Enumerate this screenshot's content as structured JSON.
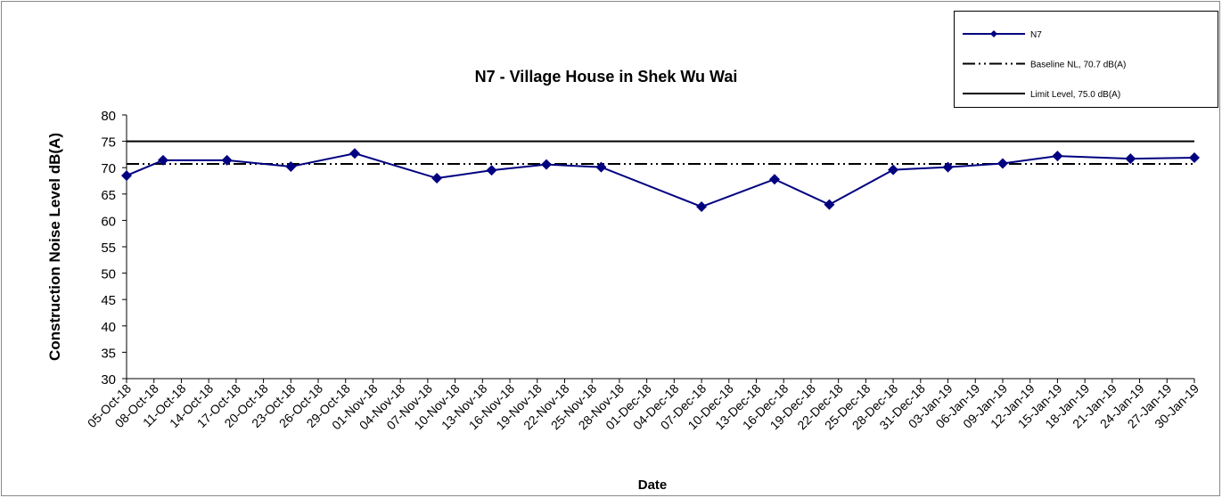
{
  "chart_data": {
    "type": "line",
    "title": "N7 - Village House in Shek Wu Wai",
    "x_label": "Date",
    "y_label": "Construction Noise Level  dB(A)",
    "x": [
      "2018-10-05",
      "2018-10-09",
      "2018-10-16",
      "2018-10-23",
      "2018-10-30",
      "2018-11-08",
      "2018-11-14",
      "2018-11-20",
      "2018-11-26",
      "2018-12-07",
      "2018-12-15",
      "2018-12-21",
      "2018-12-28",
      "2019-01-03",
      "2019-01-09",
      "2019-01-15",
      "2019-01-23",
      "2019-01-30"
    ],
    "series": [
      {
        "name": "N7",
        "color": "#000080",
        "values": [
          68.5,
          71.4,
          71.4,
          70.2,
          72.7,
          68.0,
          69.5,
          70.6,
          70.1,
          62.6,
          67.8,
          63.0,
          69.6,
          70.1,
          70.8,
          72.2,
          71.7,
          71.9
        ]
      }
    ],
    "reference_lines": [
      {
        "name": "Baseline NL, 70.7 dB(A)",
        "value": 70.7,
        "color": "#000000",
        "dash": "dash-dot-dot"
      },
      {
        "name": "Limit Level,  75.0 dB(A)",
        "value": 75.0,
        "color": "#000000",
        "dash": "solid"
      }
    ],
    "xlim": [
      "2018-10-05",
      "2019-01-30"
    ],
    "xticks": [
      {
        "value": "2018-10-05",
        "label": "05-Oct-18"
      },
      {
        "value": "2018-10-08",
        "label": "08-Oct-18"
      },
      {
        "value": "2018-10-11",
        "label": "11-Oct-18"
      },
      {
        "value": "2018-10-14",
        "label": "14-Oct-18"
      },
      {
        "value": "2018-10-17",
        "label": "17-Oct-18"
      },
      {
        "value": "2018-10-20",
        "label": "20-Oct-18"
      },
      {
        "value": "2018-10-23",
        "label": "23-Oct-18"
      },
      {
        "value": "2018-10-26",
        "label": "26-Oct-18"
      },
      {
        "value": "2018-10-29",
        "label": "29-Oct-18"
      },
      {
        "value": "2018-11-01",
        "label": "01-Nov-18"
      },
      {
        "value": "2018-11-04",
        "label": "04-Nov-18"
      },
      {
        "value": "2018-11-07",
        "label": "07-Nov-18"
      },
      {
        "value": "2018-11-10",
        "label": "10-Nov-18"
      },
      {
        "value": "2018-11-13",
        "label": "13-Nov-18"
      },
      {
        "value": "2018-11-16",
        "label": "16-Nov-18"
      },
      {
        "value": "2018-11-19",
        "label": "19-Nov-18"
      },
      {
        "value": "2018-11-22",
        "label": "22-Nov-18"
      },
      {
        "value": "2018-11-25",
        "label": "25-Nov-18"
      },
      {
        "value": "2018-11-28",
        "label": "28-Nov-18"
      },
      {
        "value": "2018-12-01",
        "label": "01-Dec-18"
      },
      {
        "value": "2018-12-04",
        "label": "04-Dec-18"
      },
      {
        "value": "2018-12-07",
        "label": "07-Dec-18"
      },
      {
        "value": "2018-12-10",
        "label": "10-Dec-18"
      },
      {
        "value": "2018-12-13",
        "label": "13-Dec-18"
      },
      {
        "value": "2018-12-16",
        "label": "16-Dec-18"
      },
      {
        "value": "2018-12-19",
        "label": "19-Dec-18"
      },
      {
        "value": "2018-12-22",
        "label": "22-Dec-18"
      },
      {
        "value": "2018-12-25",
        "label": "25-Dec-18"
      },
      {
        "value": "2018-12-28",
        "label": "28-Dec-18"
      },
      {
        "value": "2018-12-31",
        "label": "31-Dec-18"
      },
      {
        "value": "2019-01-03",
        "label": "03-Jan-19"
      },
      {
        "value": "2019-01-06",
        "label": "06-Jan-19"
      },
      {
        "value": "2019-01-09",
        "label": "09-Jan-19"
      },
      {
        "value": "2019-01-12",
        "label": "12-Jan-19"
      },
      {
        "value": "2019-01-15",
        "label": "15-Jan-19"
      },
      {
        "value": "2019-01-18",
        "label": "18-Jan-19"
      },
      {
        "value": "2019-01-21",
        "label": "21-Jan-19"
      },
      {
        "value": "2019-01-24",
        "label": "24-Jan-19"
      },
      {
        "value": "2019-01-27",
        "label": "27-Jan-19"
      },
      {
        "value": "2019-01-30",
        "label": "30-Jan-19"
      }
    ],
    "ylim": [
      30,
      80
    ],
    "yticks": [
      30,
      35,
      40,
      45,
      50,
      55,
      60,
      65,
      70,
      75,
      80
    ],
    "grid": false,
    "legend": "top-right"
  }
}
